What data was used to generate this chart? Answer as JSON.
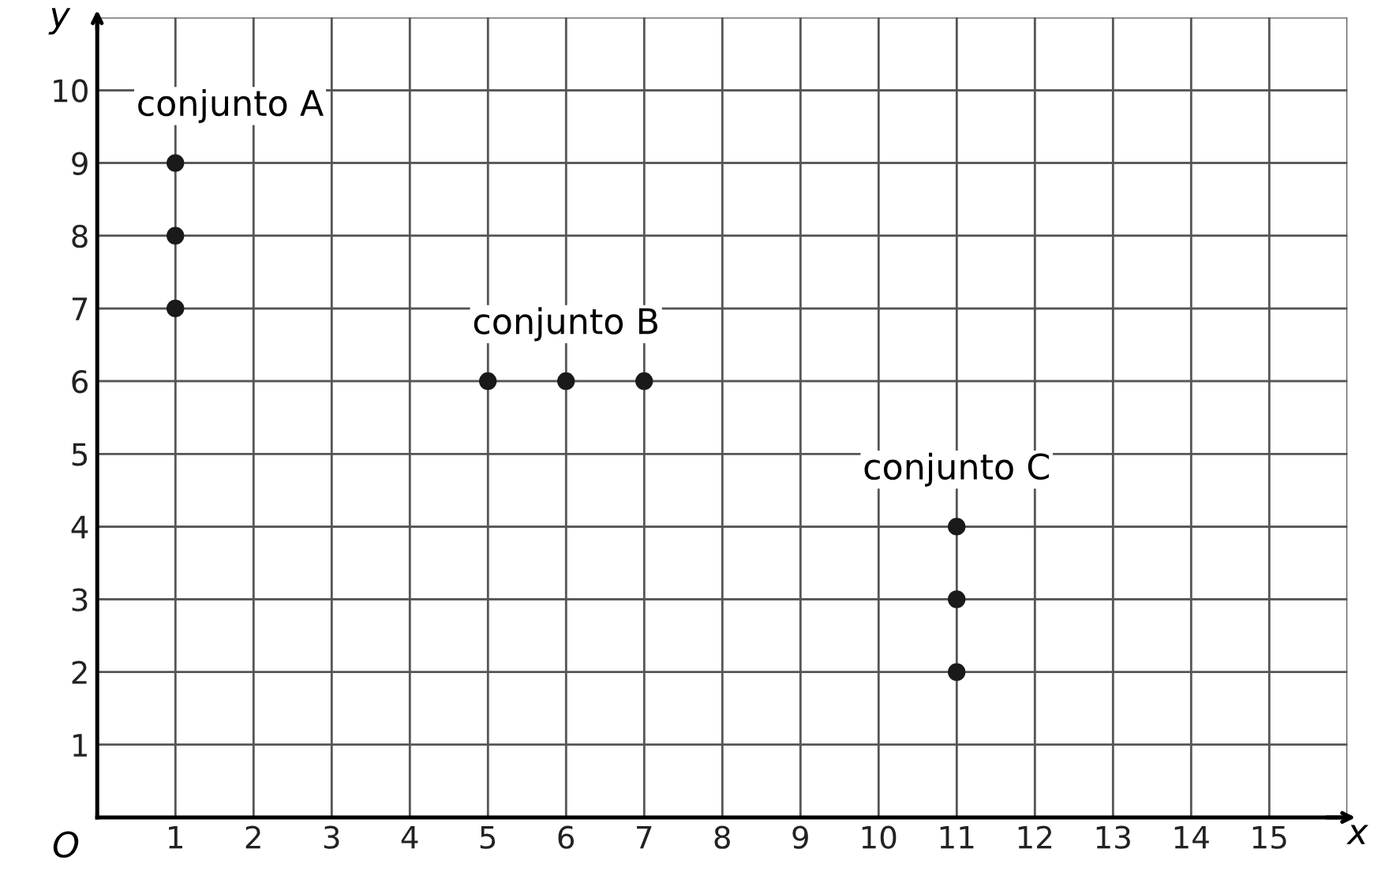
{
  "chart_data": {
    "type": "scatter",
    "xlabel": "x",
    "ylabel": "y",
    "xlim": [
      0,
      16
    ],
    "ylim": [
      0,
      11
    ],
    "xticks": [
      1,
      2,
      3,
      4,
      5,
      6,
      7,
      8,
      9,
      10,
      11,
      12,
      13,
      14,
      15
    ],
    "yticks": [
      1,
      2,
      3,
      4,
      5,
      6,
      7,
      8,
      9,
      10
    ],
    "grid": true,
    "marker": "circle",
    "legend": false,
    "annotations": [
      "O"
    ],
    "series": [
      {
        "name": "conjunto A",
        "color": "#1a1a1a",
        "x": [
          1,
          1,
          1
        ],
        "values": [
          9,
          8,
          7
        ]
      },
      {
        "name": "conjunto B",
        "color": "#1a1a1a",
        "x": [
          5,
          6,
          7
        ],
        "values": [
          6,
          6,
          6
        ]
      },
      {
        "name": "conjunto C",
        "color": "#1a1a1a",
        "x": [
          11,
          11,
          11
        ],
        "values": [
          4,
          3,
          2
        ]
      }
    ]
  }
}
